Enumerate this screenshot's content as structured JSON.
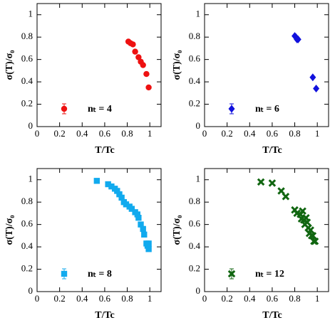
{
  "chart_data": [
    {
      "type": "scatter",
      "xlabel": "T/Tc",
      "ylabel": "σ(T)/σ₀",
      "xlim": [
        0,
        1.1
      ],
      "ylim": [
        0,
        1.1
      ],
      "xticks": [
        0,
        0.2,
        0.4,
        0.6,
        0.8,
        1
      ],
      "yticks": [
        0,
        0.2,
        0.4,
        0.6,
        0.8,
        1
      ],
      "legend": "lower left",
      "series": [
        {
          "name": "nₜ = 4",
          "color": "#ee1111",
          "marker": "circle",
          "x": [
            0.81,
            0.83,
            0.85,
            0.87,
            0.9,
            0.92,
            0.94,
            0.97,
            0.99
          ],
          "values": [
            0.76,
            0.745,
            0.735,
            0.67,
            0.62,
            0.58,
            0.55,
            0.47,
            0.35
          ]
        }
      ]
    },
    {
      "type": "scatter",
      "xlabel": "T/Tc",
      "ylabel": "σ(T)/σ₀",
      "xlim": [
        0,
        1.1
      ],
      "ylim": [
        0,
        1.1
      ],
      "xticks": [
        0,
        0.2,
        0.4,
        0.6,
        0.8,
        1
      ],
      "yticks": [
        0,
        0.2,
        0.4,
        0.6,
        0.8,
        1
      ],
      "legend": "lower left",
      "series": [
        {
          "name": "nₜ = 6",
          "color": "#1111dd",
          "marker": "diamond",
          "x": [
            0.8,
            0.81,
            0.82,
            0.83,
            0.96,
            0.99
          ],
          "values": [
            0.81,
            0.8,
            0.78,
            0.78,
            0.44,
            0.34
          ]
        }
      ]
    },
    {
      "type": "scatter",
      "xlabel": "T/Tc",
      "ylabel": "σ(T)/σ₀",
      "xlim": [
        0,
        1.1
      ],
      "ylim": [
        0,
        1.1
      ],
      "xticks": [
        0,
        0.2,
        0.4,
        0.6,
        0.8,
        1
      ],
      "yticks": [
        0,
        0.2,
        0.4,
        0.6,
        0.8,
        1
      ],
      "legend": "lower left",
      "series": [
        {
          "name": "nₜ = 8",
          "color": "#11aaee",
          "marker": "square",
          "x": [
            0.53,
            0.63,
            0.66,
            0.69,
            0.71,
            0.73,
            0.75,
            0.77,
            0.79,
            0.82,
            0.84,
            0.87,
            0.89,
            0.9,
            0.92,
            0.94,
            0.95,
            0.97,
            0.98,
            0.99,
            0.99
          ],
          "values": [
            0.99,
            0.96,
            0.94,
            0.92,
            0.9,
            0.87,
            0.84,
            0.8,
            0.78,
            0.76,
            0.74,
            0.71,
            0.69,
            0.66,
            0.6,
            0.56,
            0.51,
            0.43,
            0.41,
            0.38,
            0.43
          ]
        }
      ]
    },
    {
      "type": "scatter",
      "xlabel": "T/Tc",
      "ylabel": "σ(T)/σ₀",
      "xlim": [
        0,
        1.1
      ],
      "ylim": [
        0,
        1.1
      ],
      "xticks": [
        0,
        0.2,
        0.4,
        0.6,
        0.8,
        1
      ],
      "yticks": [
        0,
        0.2,
        0.4,
        0.6,
        0.8,
        1
      ],
      "legend": "lower left",
      "series": [
        {
          "name": "nₜ = 12",
          "color": "#116611",
          "marker": "x",
          "x": [
            0.5,
            0.6,
            0.68,
            0.72,
            0.8,
            0.82,
            0.85,
            0.87,
            0.86,
            0.88,
            0.89,
            0.9,
            0.91,
            0.92,
            0.93,
            0.94,
            0.95,
            0.96,
            0.97,
            0.98
          ],
          "values": [
            0.98,
            0.97,
            0.9,
            0.85,
            0.73,
            0.7,
            0.69,
            0.72,
            0.65,
            0.64,
            0.6,
            0.66,
            0.62,
            0.57,
            0.52,
            0.55,
            0.5,
            0.5,
            0.45,
            0.45
          ]
        }
      ]
    }
  ]
}
